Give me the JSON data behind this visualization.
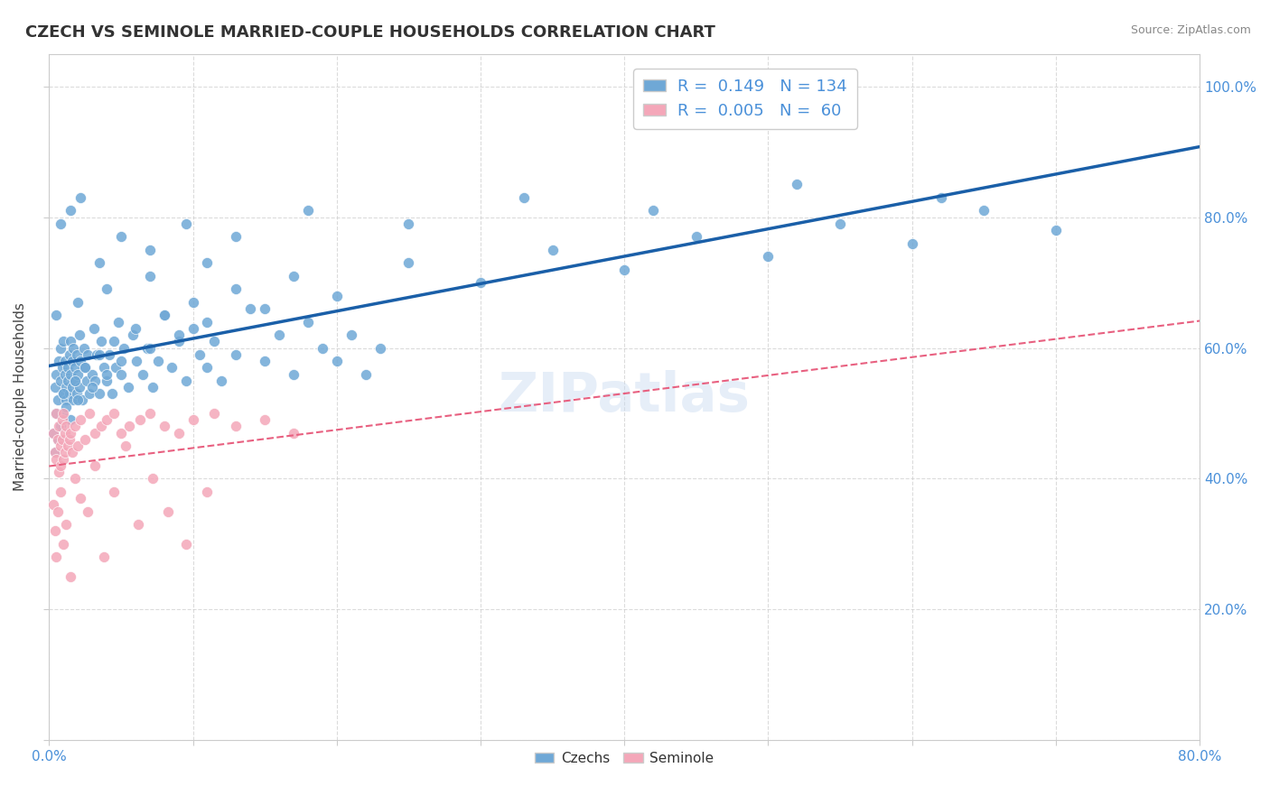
{
  "title": "CZECH VS SEMINOLE MARRIED-COUPLE HOUSEHOLDS CORRELATION CHART",
  "source": "Source: ZipAtlas.com",
  "ylabel": "Married-couple Households",
  "xlim": [
    0.0,
    0.8
  ],
  "ylim": [
    0.0,
    1.05
  ],
  "watermark": "ZIPatlas",
  "czechs_R": 0.149,
  "czechs_N": 134,
  "seminole_R": 0.005,
  "seminole_N": 60,
  "blue_color": "#6fa8d6",
  "pink_color": "#f4a7b9",
  "blue_line_color": "#1a5fa8",
  "pink_line_color": "#e86080",
  "grid_color": "#cccccc",
  "background_color": "#ffffff",
  "czechs_x": [
    0.004,
    0.005,
    0.006,
    0.007,
    0.008,
    0.008,
    0.009,
    0.009,
    0.01,
    0.01,
    0.011,
    0.011,
    0.012,
    0.012,
    0.013,
    0.013,
    0.014,
    0.014,
    0.015,
    0.015,
    0.016,
    0.016,
    0.017,
    0.017,
    0.018,
    0.018,
    0.019,
    0.019,
    0.02,
    0.021,
    0.021,
    0.022,
    0.023,
    0.024,
    0.025,
    0.026,
    0.027,
    0.028,
    0.03,
    0.031,
    0.032,
    0.033,
    0.035,
    0.036,
    0.038,
    0.04,
    0.042,
    0.044,
    0.046,
    0.048,
    0.05,
    0.052,
    0.055,
    0.058,
    0.061,
    0.065,
    0.068,
    0.072,
    0.076,
    0.08,
    0.085,
    0.09,
    0.095,
    0.1,
    0.105,
    0.11,
    0.115,
    0.12,
    0.13,
    0.14,
    0.15,
    0.16,
    0.17,
    0.18,
    0.19,
    0.2,
    0.21,
    0.22,
    0.23,
    0.003,
    0.004,
    0.005,
    0.006,
    0.008,
    0.01,
    0.012,
    0.015,
    0.018,
    0.02,
    0.025,
    0.03,
    0.035,
    0.04,
    0.045,
    0.05,
    0.06,
    0.07,
    0.08,
    0.09,
    0.1,
    0.11,
    0.13,
    0.15,
    0.17,
    0.2,
    0.25,
    0.3,
    0.35,
    0.4,
    0.45,
    0.5,
    0.55,
    0.6,
    0.65,
    0.7,
    0.008,
    0.015,
    0.022,
    0.035,
    0.05,
    0.07,
    0.095,
    0.13,
    0.18,
    0.25,
    0.33,
    0.42,
    0.52,
    0.62,
    0.005,
    0.02,
    0.04,
    0.07,
    0.11
  ],
  "czechs_y": [
    0.54,
    0.56,
    0.52,
    0.58,
    0.55,
    0.6,
    0.5,
    0.57,
    0.53,
    0.61,
    0.56,
    0.58,
    0.54,
    0.52,
    0.57,
    0.55,
    0.59,
    0.53,
    0.56,
    0.61,
    0.54,
    0.58,
    0.52,
    0.6,
    0.57,
    0.55,
    0.59,
    0.53,
    0.56,
    0.62,
    0.54,
    0.58,
    0.52,
    0.6,
    0.57,
    0.55,
    0.59,
    0.53,
    0.56,
    0.63,
    0.55,
    0.59,
    0.53,
    0.61,
    0.57,
    0.55,
    0.59,
    0.53,
    0.57,
    0.64,
    0.56,
    0.6,
    0.54,
    0.62,
    0.58,
    0.56,
    0.6,
    0.54,
    0.58,
    0.65,
    0.57,
    0.61,
    0.55,
    0.63,
    0.59,
    0.57,
    0.61,
    0.55,
    0.59,
    0.66,
    0.58,
    0.62,
    0.56,
    0.64,
    0.6,
    0.58,
    0.62,
    0.56,
    0.6,
    0.47,
    0.44,
    0.5,
    0.46,
    0.48,
    0.53,
    0.51,
    0.49,
    0.55,
    0.52,
    0.57,
    0.54,
    0.59,
    0.56,
    0.61,
    0.58,
    0.63,
    0.6,
    0.65,
    0.62,
    0.67,
    0.64,
    0.69,
    0.66,
    0.71,
    0.68,
    0.73,
    0.7,
    0.75,
    0.72,
    0.77,
    0.74,
    0.79,
    0.76,
    0.81,
    0.78,
    0.79,
    0.81,
    0.83,
    0.73,
    0.77,
    0.75,
    0.79,
    0.77,
    0.81,
    0.79,
    0.83,
    0.81,
    0.85,
    0.83,
    0.65,
    0.67,
    0.69,
    0.71,
    0.73
  ],
  "seminole_x": [
    0.003,
    0.004,
    0.005,
    0.005,
    0.006,
    0.007,
    0.007,
    0.008,
    0.008,
    0.009,
    0.009,
    0.01,
    0.01,
    0.011,
    0.011,
    0.012,
    0.013,
    0.014,
    0.015,
    0.016,
    0.018,
    0.02,
    0.022,
    0.025,
    0.028,
    0.032,
    0.036,
    0.04,
    0.045,
    0.05,
    0.056,
    0.063,
    0.07,
    0.08,
    0.09,
    0.1,
    0.115,
    0.13,
    0.15,
    0.17,
    0.003,
    0.004,
    0.005,
    0.006,
    0.008,
    0.01,
    0.012,
    0.015,
    0.018,
    0.022,
    0.027,
    0.032,
    0.038,
    0.045,
    0.053,
    0.062,
    0.072,
    0.083,
    0.095,
    0.11
  ],
  "seminole_y": [
    0.47,
    0.44,
    0.5,
    0.43,
    0.46,
    0.41,
    0.48,
    0.45,
    0.42,
    0.49,
    0.46,
    0.43,
    0.5,
    0.47,
    0.44,
    0.48,
    0.45,
    0.46,
    0.47,
    0.44,
    0.48,
    0.45,
    0.49,
    0.46,
    0.5,
    0.47,
    0.48,
    0.49,
    0.5,
    0.47,
    0.48,
    0.49,
    0.5,
    0.48,
    0.47,
    0.49,
    0.5,
    0.48,
    0.49,
    0.47,
    0.36,
    0.32,
    0.28,
    0.35,
    0.38,
    0.3,
    0.33,
    0.25,
    0.4,
    0.37,
    0.35,
    0.42,
    0.28,
    0.38,
    0.45,
    0.33,
    0.4,
    0.35,
    0.3,
    0.38
  ]
}
